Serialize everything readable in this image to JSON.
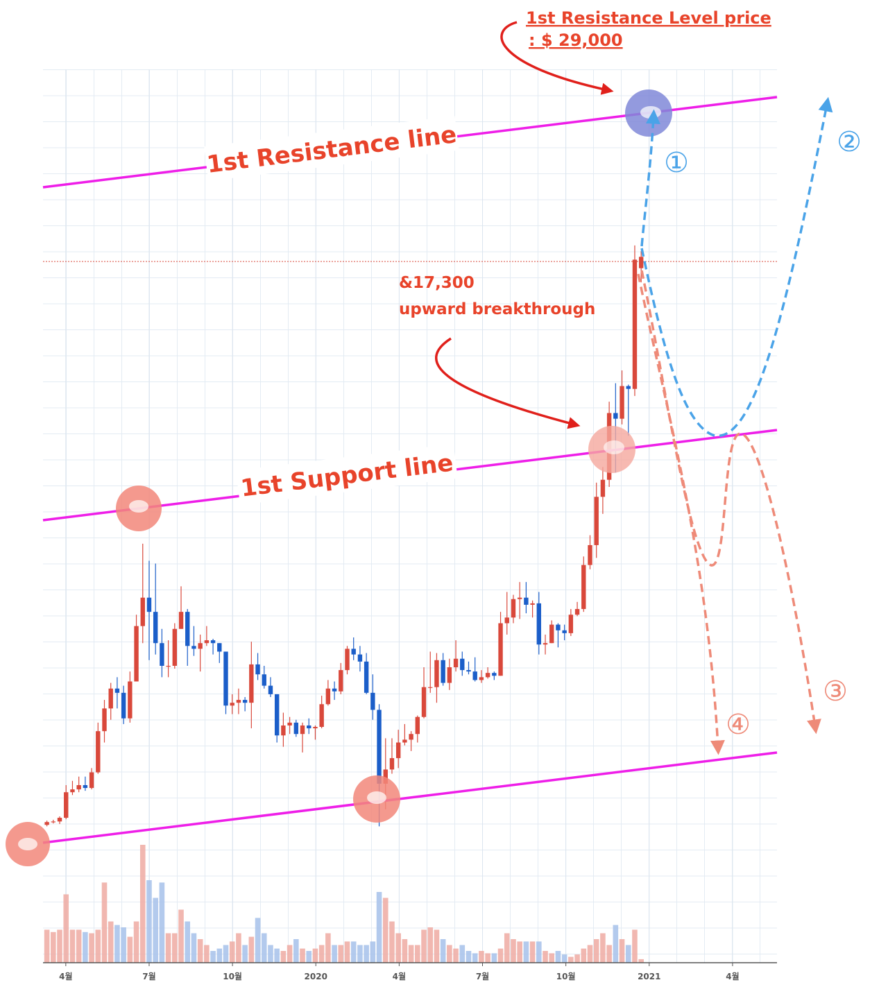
{
  "chart_data": {
    "type": "candlestick",
    "up_color": "#d9483b",
    "down_color": "#1b5ec9",
    "xlim": [
      3.18,
      29.6
    ],
    "xticks": [
      {
        "value": 4,
        "label": "4월"
      },
      {
        "value": 7,
        "label": "7월"
      },
      {
        "value": 10,
        "label": "10월"
      },
      {
        "value": 13,
        "label": "2020"
      },
      {
        "value": 16,
        "label": "4월"
      },
      {
        "value": 19,
        "label": "7월"
      },
      {
        "value": 22,
        "label": "10월"
      },
      {
        "value": 25,
        "label": "2021"
      },
      {
        "value": 28,
        "label": "4월"
      }
    ],
    "ylim": [
      0,
      30500
    ],
    "x": [
      3.32,
      3.55,
      3.78,
      4.01,
      4.24,
      4.47,
      4.7,
      4.93,
      5.16,
      5.39,
      5.62,
      5.85,
      6.08,
      6.31,
      6.54,
      6.77,
      7.0,
      7.23,
      7.46,
      7.69,
      7.92,
      8.15,
      8.38,
      8.61,
      8.84,
      9.07,
      9.3,
      9.53,
      9.76,
      9.99,
      10.22,
      10.45,
      10.68,
      10.91,
      11.14,
      11.37,
      11.6,
      11.83,
      12.06,
      12.29,
      12.52,
      12.75,
      12.98,
      13.21,
      13.44,
      13.67,
      13.9,
      14.13,
      14.36,
      14.59,
      14.82,
      15.05,
      15.28,
      15.51,
      15.74,
      15.97,
      16.2,
      16.43,
      16.66,
      16.89,
      17.12,
      17.35,
      17.58,
      17.81,
      18.04,
      18.27,
      18.5,
      18.73,
      18.96,
      19.19,
      19.42,
      19.65,
      19.88,
      20.11,
      20.34,
      20.57,
      20.8,
      21.03,
      21.26,
      21.49,
      21.72,
      21.95,
      22.18,
      22.41,
      22.64,
      22.87,
      23.1,
      23.33,
      23.56,
      23.79,
      24.02,
      24.25,
      24.48,
      24.71
    ],
    "open": [
      3900,
      4000,
      4020,
      4150,
      5050,
      5150,
      5300,
      5200,
      5750,
      7200,
      8000,
      8700,
      8550,
      7650,
      8950,
      10900,
      11900,
      11400,
      10300,
      9500,
      9500,
      10800,
      11400,
      10200,
      10100,
      10300,
      10400,
      10300,
      10000,
      8100,
      8200,
      8300,
      8200,
      9550,
      9200,
      8800,
      8500,
      7050,
      7400,
      7500,
      7100,
      7400,
      7300,
      7350,
      8150,
      8700,
      8600,
      9350,
      10100,
      9900,
      9650,
      8550,
      7950,
      5350,
      5850,
      6250,
      6800,
      6900,
      7100,
      7700,
      8750,
      8750,
      9700,
      8900,
      9450,
      9750,
      9350,
      9300,
      9000,
      9100,
      9250,
      9150,
      11000,
      11200,
      11850,
      11900,
      11650,
      11700,
      10250,
      10300,
      10950,
      10750,
      10650,
      11300,
      11500,
      13050,
      13750,
      15450,
      16050,
      18400,
      18200,
      19350,
      19250,
      23500
    ],
    "high": [
      4050,
      4080,
      4200,
      5300,
      5450,
      5600,
      5600,
      5900,
      7500,
      8300,
      8900,
      9100,
      8800,
      9300,
      11300,
      13800,
      13200,
      13100,
      10800,
      10400,
      11000,
      12300,
      11500,
      10900,
      10600,
      10900,
      10450,
      10300,
      10000,
      8500,
      8700,
      8400,
      10350,
      9950,
      9500,
      9100,
      8500,
      7850,
      7700,
      7600,
      7500,
      7650,
      7400,
      8450,
      9000,
      8950,
      9600,
      10200,
      10500,
      10200,
      9950,
      9200,
      8150,
      6950,
      6950,
      7250,
      7450,
      7200,
      7750,
      9450,
      10000,
      9950,
      9950,
      9750,
      10400,
      10000,
      9650,
      9800,
      9350,
      9450,
      9300,
      11400,
      12100,
      12000,
      12450,
      12450,
      11800,
      12100,
      10600,
      11100,
      11000,
      10950,
      11500,
      11750,
      13350,
      14100,
      15950,
      16500,
      18800,
      19450,
      19900,
      19400,
      24300,
      24100
    ],
    "low": [
      3850,
      3950,
      3930,
      4100,
      4950,
      5050,
      5100,
      5150,
      5700,
      6800,
      7600,
      8000,
      7450,
      7500,
      8950,
      10300,
      9700,
      9900,
      9100,
      9100,
      9400,
      10800,
      9500,
      9850,
      9300,
      10200,
      9900,
      9600,
      7800,
      7800,
      7800,
      7900,
      7300,
      9000,
      8700,
      8400,
      6800,
      6650,
      7100,
      7000,
      6450,
      7100,
      6900,
      7300,
      8100,
      8300,
      8500,
      9200,
      9700,
      9300,
      8500,
      7600,
      3850,
      4450,
      5700,
      5900,
      6700,
      6500,
      6800,
      7650,
      8550,
      8200,
      8800,
      8650,
      9300,
      9150,
      9200,
      8950,
      8900,
      9050,
      9000,
      9150,
      10600,
      11000,
      11150,
      11350,
      11200,
      9900,
      9900,
      10300,
      10150,
      10400,
      10550,
      11250,
      11400,
      12900,
      13300,
      14850,
      15800,
      16300,
      18000,
      17600,
      19000,
      23000
    ],
    "close": [
      4000,
      4020,
      4150,
      5050,
      5150,
      5300,
      5200,
      5750,
      7200,
      8000,
      8700,
      8550,
      7650,
      8950,
      10900,
      11900,
      11400,
      10300,
      9500,
      9500,
      10800,
      11400,
      10200,
      10100,
      10300,
      10400,
      10300,
      10000,
      8100,
      8200,
      8300,
      8200,
      9550,
      9200,
      8800,
      8500,
      7050,
      7400,
      7500,
      7100,
      7400,
      7300,
      7350,
      8150,
      8700,
      8600,
      9350,
      10100,
      9900,
      9650,
      8550,
      7950,
      5350,
      5850,
      6250,
      6800,
      6900,
      7100,
      7700,
      8750,
      8750,
      9700,
      8900,
      9450,
      9750,
      9350,
      9300,
      9000,
      9100,
      9250,
      9150,
      11000,
      11200,
      11850,
      11900,
      11650,
      11700,
      10250,
      10300,
      10950,
      10750,
      10650,
      11300,
      11500,
      13050,
      13750,
      15450,
      16050,
      18400,
      18200,
      19350,
      19250,
      23800,
      23900
    ],
    "volume": {
      "ylim": [
        0,
        100
      ],
      "up_color": "#efaaa2",
      "down_color": "#a6c1ea",
      "values": [
        28,
        26,
        28,
        58,
        28,
        28,
        26,
        25,
        28,
        68,
        35,
        32,
        30,
        22,
        35,
        100,
        70,
        55,
        68,
        25,
        25,
        45,
        35,
        25,
        20,
        15,
        10,
        12,
        15,
        18,
        25,
        15,
        22,
        38,
        25,
        15,
        12,
        10,
        15,
        20,
        12,
        10,
        12,
        15,
        25,
        15,
        15,
        18,
        18,
        15,
        15,
        18,
        60,
        55,
        35,
        25,
        20,
        15,
        15,
        28,
        30,
        28,
        20,
        15,
        12,
        15,
        10,
        8,
        10,
        8,
        8,
        12,
        25,
        20,
        18,
        18,
        18,
        18,
        10,
        8,
        10,
        7,
        5,
        7,
        12,
        15,
        20,
        25,
        15,
        32,
        20,
        15,
        28,
        3
      ]
    },
    "annotations": {
      "resistance_price_title": "1st Resistance Level price",
      "resistance_price": ": $ 29,000",
      "breakout_price": "&17,300",
      "breakout_text": "upward breakthrough",
      "resistance_line": "1st Resistance line",
      "support_line": "1st Support line",
      "scenario_1": "①",
      "scenario_2": "②",
      "scenario_3": "③",
      "scenario_4": "④"
    }
  }
}
